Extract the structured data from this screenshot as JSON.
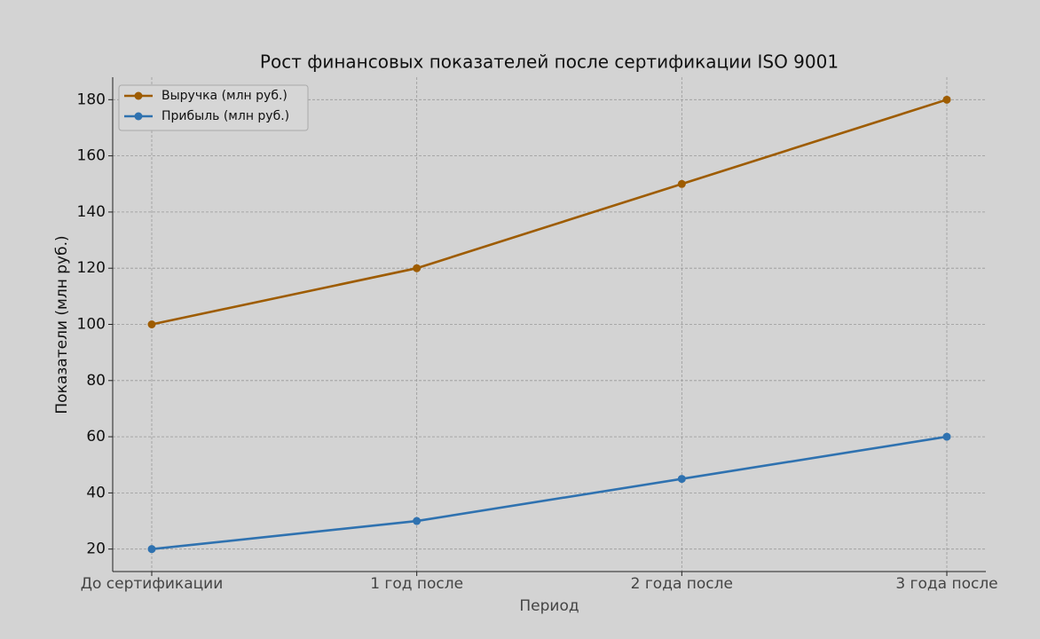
{
  "chart_data": {
    "type": "line",
    "title": "Рост финансовых показателей после сертификации ISO 9001",
    "x_label": "Период",
    "y_label": "Показатели (млн руб.)",
    "categories": [
      "До сертификации",
      "1 год после",
      "2 года после",
      "3 года после"
    ],
    "series": [
      {
        "name": "Выручка (млн руб.)",
        "color": "#9e5c00",
        "values": [
          100,
          120,
          150,
          180
        ]
      },
      {
        "name": "Прибыль (млн руб.)",
        "color": "#2f72b0",
        "values": [
          20,
          30,
          45,
          60
        ]
      }
    ],
    "ylim": [
      12,
      188
    ],
    "yticks": [
      20,
      40,
      60,
      80,
      100,
      120,
      140,
      160,
      180
    ],
    "grid": true,
    "legend": "upper left"
  }
}
